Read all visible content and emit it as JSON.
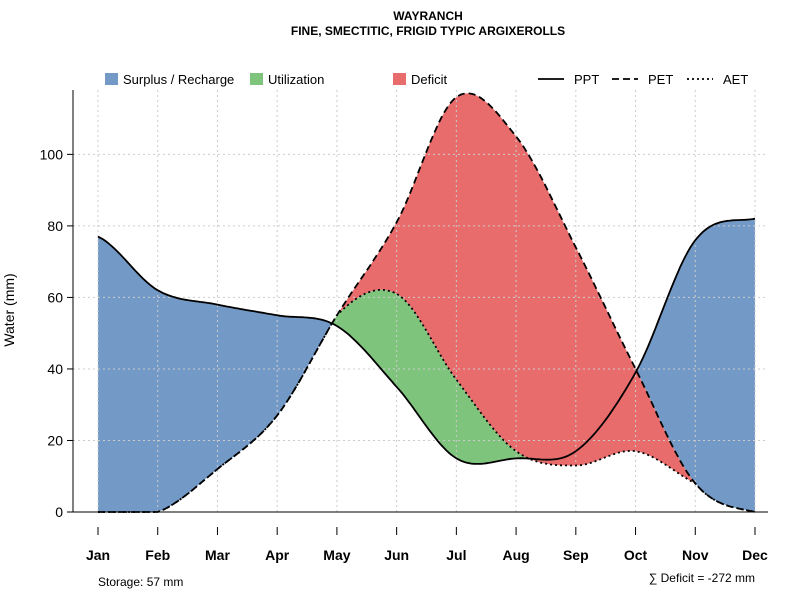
{
  "chart_data": {
    "type": "area",
    "title": "WAYRANCH",
    "subtitle": "FINE, SMECTITIC, FRIGID TYPIC ARGIXEROLLS",
    "xlabel": "",
    "ylabel": "Water (mm)",
    "ylim": [
      0,
      118
    ],
    "yticks": [
      0,
      20,
      40,
      60,
      80,
      100
    ],
    "grid": true,
    "categories": [
      "Jan",
      "Feb",
      "Mar",
      "Apr",
      "May",
      "Jun",
      "Jul",
      "Aug",
      "Sep",
      "Oct",
      "Nov",
      "Dec"
    ],
    "series": [
      {
        "name": "PPT",
        "style": "solid",
        "values": [
          77,
          62,
          58,
          55,
          52,
          35,
          15,
          15,
          17,
          39,
          76,
          82
        ]
      },
      {
        "name": "PET",
        "style": "dashed",
        "values": [
          0,
          0,
          12,
          27,
          55,
          81,
          116,
          105,
          74,
          40,
          8,
          0
        ]
      },
      {
        "name": "AET",
        "style": "dotted",
        "values": [
          0,
          0,
          12,
          27,
          55,
          61,
          37,
          17,
          13,
          17,
          8,
          0
        ]
      }
    ],
    "fills": [
      {
        "name": "Surplus / Recharge",
        "color": "#7399c6"
      },
      {
        "name": "Utilization",
        "color": "#7fc47c"
      },
      {
        "name": "Deficit",
        "color": "#e96c6c"
      }
    ],
    "legend_position": "top",
    "annotations": {
      "storage": "Storage: 57 mm",
      "deficit": "∑ Deficit = -272 mm"
    }
  }
}
